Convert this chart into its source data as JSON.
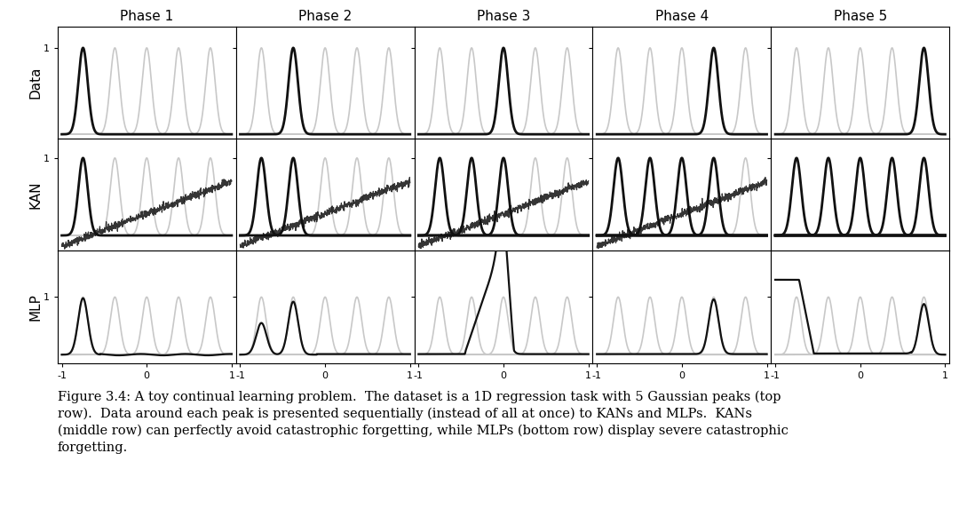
{
  "phases": [
    "Phase 1",
    "Phase 2",
    "Phase 3",
    "Phase 4",
    "Phase 5"
  ],
  "row_labels": [
    "Data",
    "KAN",
    "MLP"
  ],
  "peak_centers": [
    -0.75,
    -0.375,
    0.0,
    0.375,
    0.75
  ],
  "peak_sigma": 0.055,
  "xlim": [
    -1.05,
    1.05
  ],
  "ylim_data": [
    -0.05,
    1.25
  ],
  "ylim_kan": [
    -0.2,
    1.25
  ],
  "ylim_mlp": [
    -0.15,
    1.8
  ],
  "xticks": [
    -1,
    0,
    1
  ],
  "black_color": "#111111",
  "gray_color": "#c8c8c8",
  "background": "#ffffff",
  "caption": "Figure 3.4: A toy continual learning problem.  The dataset is a 1D regression task with 5 Gaussian peaks (top\nrow).  Data around each peak is presented sequentially (instead of all at once) to KANs and MLPs.  KANs\n(middle row) can perfectly avoid catastrophic forgetting, while MLPs (bottom row) display severe catastrophic\nforgetting.",
  "caption_fontsize": 10.5,
  "title_fontsize": 11,
  "label_fontsize": 11
}
